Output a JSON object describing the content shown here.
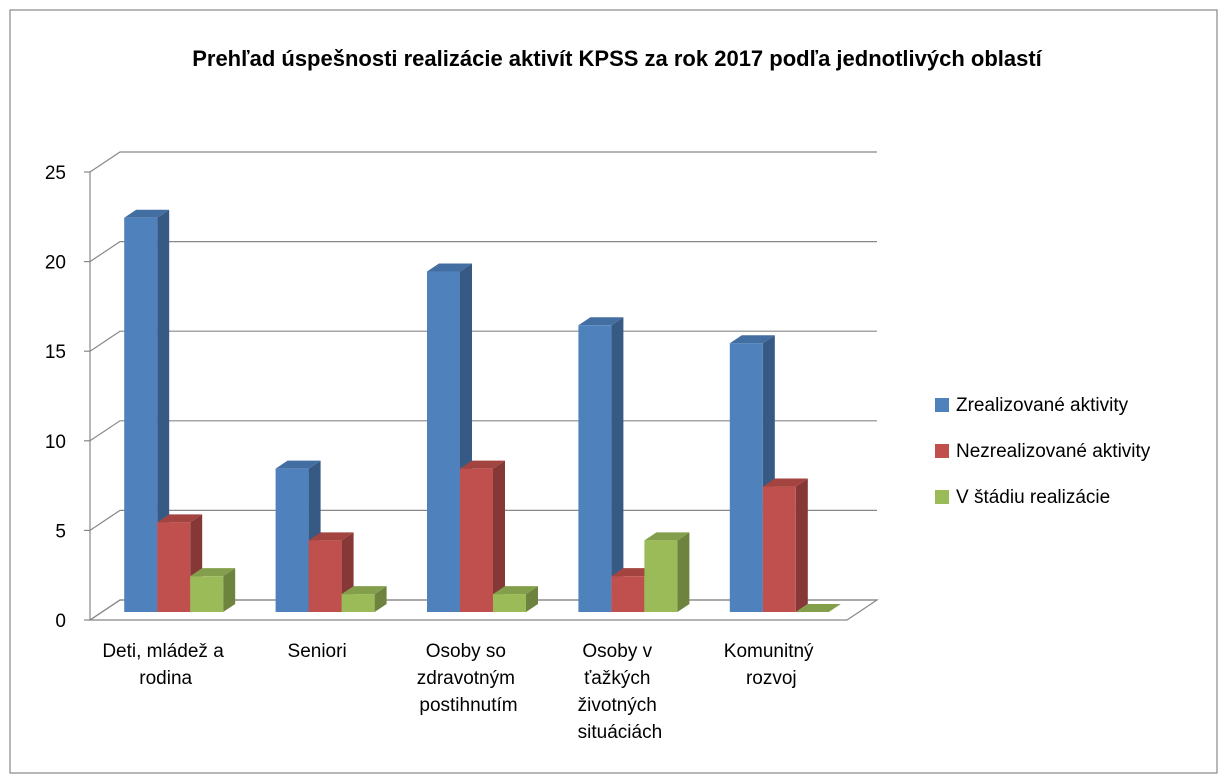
{
  "chart_data": {
    "type": "bar3d",
    "title": "Prehľad úspešnosti realizácie aktivít KPSS za rok 2017 podľa jednotlivých oblastí",
    "categories": [
      "Deti, mládež a rodina",
      "Seniori",
      "Osoby so zdravotným postihnutím",
      "Osoby v ťažkých životných situáciách",
      "Komunitný rozvoj"
    ],
    "series": [
      {
        "name": "Zrealizované aktivity",
        "color": "#4f81bd",
        "values": [
          22,
          8,
          19,
          16,
          15
        ]
      },
      {
        "name": "Nezrealizované aktivity",
        "color": "#c0504d",
        "values": [
          5,
          4,
          8,
          2,
          7
        ]
      },
      {
        "name": "V štádiu realizácie",
        "color": "#9bbb59",
        "values": [
          2,
          1,
          1,
          4,
          0
        ]
      }
    ],
    "ylim": [
      0,
      25
    ],
    "yticks": [
      0,
      5,
      10,
      15,
      20,
      25
    ],
    "grid": true,
    "legend": "right"
  }
}
